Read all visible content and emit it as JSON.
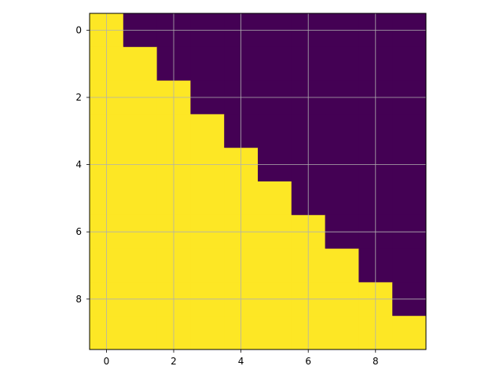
{
  "chart_data": {
    "type": "heatmap",
    "title": "",
    "xlabel": "",
    "ylabel": "",
    "rows": 10,
    "cols": 10,
    "rule": "value is 1 where column index <= row index (lower triangle including diagonal), else 0",
    "values": [
      [
        1,
        0,
        0,
        0,
        0,
        0,
        0,
        0,
        0,
        0
      ],
      [
        1,
        1,
        0,
        0,
        0,
        0,
        0,
        0,
        0,
        0
      ],
      [
        1,
        1,
        1,
        0,
        0,
        0,
        0,
        0,
        0,
        0
      ],
      [
        1,
        1,
        1,
        1,
        0,
        0,
        0,
        0,
        0,
        0
      ],
      [
        1,
        1,
        1,
        1,
        1,
        0,
        0,
        0,
        0,
        0
      ],
      [
        1,
        1,
        1,
        1,
        1,
        1,
        0,
        0,
        0,
        0
      ],
      [
        1,
        1,
        1,
        1,
        1,
        1,
        1,
        0,
        0,
        0
      ],
      [
        1,
        1,
        1,
        1,
        1,
        1,
        1,
        1,
        0,
        0
      ],
      [
        1,
        1,
        1,
        1,
        1,
        1,
        1,
        1,
        1,
        0
      ],
      [
        1,
        1,
        1,
        1,
        1,
        1,
        1,
        1,
        1,
        1
      ]
    ],
    "xlim": [
      -0.5,
      9.5
    ],
    "ylim": [
      -0.5,
      9.5
    ],
    "y_inverted": true,
    "xticks": [
      0,
      2,
      4,
      6,
      8
    ],
    "yticks": [
      0,
      2,
      4,
      6,
      8
    ],
    "xtick_labels": [
      "0",
      "2",
      "4",
      "6",
      "8"
    ],
    "ytick_labels": [
      "0",
      "2",
      "4",
      "6",
      "8"
    ],
    "grid": true,
    "colormap": "viridis",
    "colors": {
      "low": "#440154",
      "high": "#fde725",
      "grid": "#b0b0b0",
      "axis": "#000000"
    }
  }
}
